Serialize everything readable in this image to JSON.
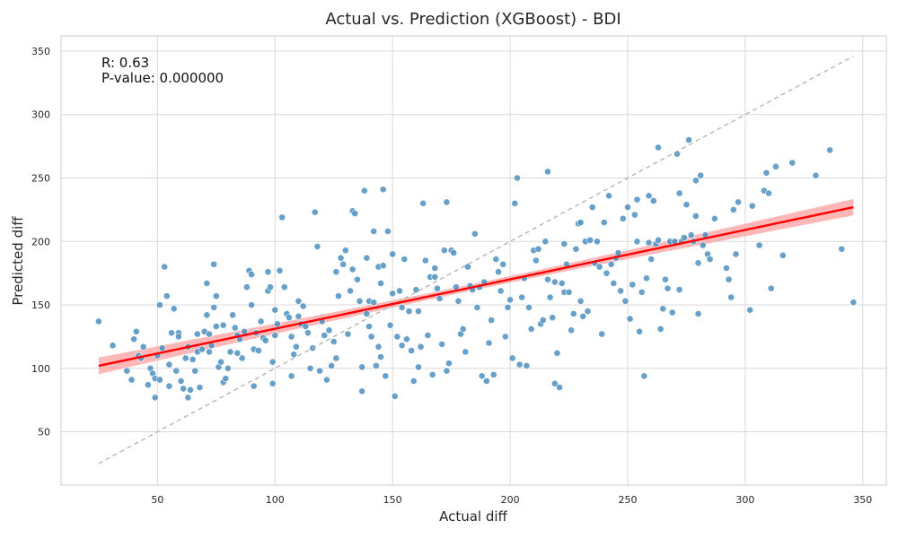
{
  "chart_data": {
    "type": "scatter",
    "title": "Actual vs. Prediction (XGBoost) - BDI",
    "xlabel": "Actual  diff",
    "ylabel": "Predicted  diff",
    "xlim": [
      9,
      360
    ],
    "ylim": [
      8,
      362
    ],
    "xticks": [
      50,
      100,
      150,
      200,
      250,
      300,
      350
    ],
    "yticks": [
      50,
      100,
      150,
      200,
      250,
      300,
      350
    ],
    "grid": true,
    "annotations": {
      "r": "R: 0.63",
      "pvalue": "P-value: 0.000000"
    },
    "colors": {
      "points": "#4c8fc0",
      "regression": "#ff0000",
      "ci_band": "#ff9999",
      "identity": "#b0b0b0",
      "grid": "#d9d9d9",
      "frame": "#cccccc"
    },
    "identity_line": {
      "from": [
        25,
        25
      ],
      "to": [
        346,
        346
      ]
    },
    "regression": {
      "from": [
        25,
        102
      ],
      "to": [
        346,
        227
      ],
      "ci_halfwidth_ends": 6.5,
      "ci_halfwidth_center": 2.5
    },
    "points": [
      [
        25,
        137
      ],
      [
        31,
        118
      ],
      [
        37,
        98
      ],
      [
        39,
        91
      ],
      [
        40,
        123
      ],
      [
        41,
        129
      ],
      [
        42,
        110
      ],
      [
        43,
        108
      ],
      [
        44,
        117
      ],
      [
        46,
        87
      ],
      [
        47,
        100
      ],
      [
        48,
        96
      ],
      [
        49,
        77
      ],
      [
        49,
        92
      ],
      [
        50,
        110
      ],
      [
        51,
        150
      ],
      [
        51,
        91
      ],
      [
        52,
        116
      ],
      [
        53,
        180
      ],
      [
        54,
        157
      ],
      [
        55,
        103
      ],
      [
        55,
        86
      ],
      [
        56,
        128
      ],
      [
        57,
        147
      ],
      [
        58,
        98
      ],
      [
        59,
        128
      ],
      [
        59,
        125
      ],
      [
        60,
        90
      ],
      [
        61,
        84
      ],
      [
        62,
        108
      ],
      [
        63,
        77
      ],
      [
        63,
        117
      ],
      [
        64,
        83
      ],
      [
        65,
        107
      ],
      [
        66,
        98
      ],
      [
        67,
        127
      ],
      [
        67,
        113
      ],
      [
        68,
        85
      ],
      [
        69,
        115
      ],
      [
        70,
        129
      ],
      [
        71,
        167
      ],
      [
        71,
        142
      ],
      [
        72,
        127
      ],
      [
        72,
        113
      ],
      [
        73,
        118
      ],
      [
        74,
        148
      ],
      [
        74,
        182
      ],
      [
        75,
        133
      ],
      [
        75,
        157
      ],
      [
        76,
        101
      ],
      [
        77,
        105
      ],
      [
        78,
        89
      ],
      [
        78,
        134
      ],
      [
        79,
        92
      ],
      [
        80,
        100
      ],
      [
        81,
        113
      ],
      [
        82,
        142
      ],
      [
        83,
        132
      ],
      [
        84,
        126
      ],
      [
        84,
        112
      ],
      [
        85,
        123
      ],
      [
        86,
        108
      ],
      [
        87,
        129
      ],
      [
        88,
        164
      ],
      [
        89,
        177
      ],
      [
        90,
        174
      ],
      [
        90,
        150
      ],
      [
        91,
        115
      ],
      [
        91,
        86
      ],
      [
        92,
        128
      ],
      [
        93,
        114
      ],
      [
        94,
        137
      ],
      [
        95,
        124
      ],
      [
        96,
        122
      ],
      [
        97,
        176
      ],
      [
        97,
        161
      ],
      [
        98,
        164
      ],
      [
        99,
        88
      ],
      [
        99,
        105
      ],
      [
        100,
        146
      ],
      [
        100,
        126
      ],
      [
        101,
        135
      ],
      [
        102,
        177
      ],
      [
        103,
        219
      ],
      [
        104,
        164
      ],
      [
        105,
        143
      ],
      [
        106,
        140
      ],
      [
        107,
        125
      ],
      [
        107,
        94
      ],
      [
        108,
        111
      ],
      [
        109,
        117
      ],
      [
        110,
        141
      ],
      [
        110,
        153
      ],
      [
        111,
        135
      ],
      [
        112,
        149
      ],
      [
        113,
        133
      ],
      [
        114,
        128
      ],
      [
        115,
        100
      ],
      [
        116,
        116
      ],
      [
        117,
        223
      ],
      [
        118,
        196
      ],
      [
        119,
        98
      ],
      [
        120,
        137
      ],
      [
        121,
        126
      ],
      [
        122,
        91
      ],
      [
        123,
        130
      ],
      [
        124,
        102
      ],
      [
        125,
        121
      ],
      [
        126,
        176
      ],
      [
        126,
        108
      ],
      [
        127,
        157
      ],
      [
        128,
        187
      ],
      [
        129,
        182
      ],
      [
        130,
        193
      ],
      [
        131,
        127
      ],
      [
        132,
        161
      ],
      [
        133,
        224
      ],
      [
        133,
        178
      ],
      [
        134,
        222
      ],
      [
        135,
        170
      ],
      [
        136,
        153
      ],
      [
        137,
        101
      ],
      [
        137,
        82
      ],
      [
        138,
        240
      ],
      [
        139,
        187
      ],
      [
        139,
        143
      ],
      [
        140,
        153
      ],
      [
        140,
        133
      ],
      [
        141,
        125
      ],
      [
        142,
        208
      ],
      [
        142,
        152
      ],
      [
        143,
        102
      ],
      [
        144,
        117
      ],
      [
        144,
        180
      ],
      [
        145,
        167
      ],
      [
        145,
        109
      ],
      [
        146,
        241
      ],
      [
        146,
        181
      ],
      [
        147,
        94
      ],
      [
        148,
        208
      ],
      [
        149,
        134
      ],
      [
        150,
        159
      ],
      [
        150,
        190
      ],
      [
        151,
        78
      ],
      [
        152,
        125
      ],
      [
        153,
        161
      ],
      [
        154,
        118
      ],
      [
        154,
        148
      ],
      [
        155,
        186
      ],
      [
        156,
        123
      ],
      [
        157,
        145
      ],
      [
        158,
        114
      ],
      [
        159,
        90
      ],
      [
        160,
        162
      ],
      [
        161,
        101
      ],
      [
        161,
        145
      ],
      [
        162,
        117
      ],
      [
        163,
        230
      ],
      [
        164,
        185
      ],
      [
        165,
        126
      ],
      [
        166,
        172
      ],
      [
        167,
        95
      ],
      [
        168,
        172
      ],
      [
        168,
        179
      ],
      [
        169,
        163
      ],
      [
        170,
        155
      ],
      [
        171,
        119
      ],
      [
        172,
        193
      ],
      [
        173,
        231
      ],
      [
        173,
        98
      ],
      [
        174,
        104
      ],
      [
        175,
        193
      ],
      [
        176,
        191
      ],
      [
        177,
        164
      ],
      [
        178,
        153
      ],
      [
        179,
        127
      ],
      [
        180,
        131
      ],
      [
        181,
        113
      ],
      [
        182,
        180
      ],
      [
        183,
        165
      ],
      [
        184,
        162
      ],
      [
        185,
        206
      ],
      [
        186,
        148
      ],
      [
        187,
        164
      ],
      [
        188,
        94
      ],
      [
        189,
        168
      ],
      [
        190,
        90
      ],
      [
        191,
        120
      ],
      [
        192,
        138
      ],
      [
        193,
        95
      ],
      [
        194,
        186
      ],
      [
        195,
        176
      ],
      [
        196,
        161
      ],
      [
        197,
        182
      ],
      [
        198,
        125
      ],
      [
        199,
        148
      ],
      [
        200,
        154
      ],
      [
        201,
        108
      ],
      [
        202,
        230
      ],
      [
        203,
        250
      ],
      [
        204,
        103
      ],
      [
        205,
        156
      ],
      [
        206,
        171
      ],
      [
        207,
        102
      ],
      [
        208,
        148
      ],
      [
        209,
        131
      ],
      [
        210,
        193
      ],
      [
        211,
        185
      ],
      [
        212,
        194
      ],
      [
        213,
        135
      ],
      [
        214,
        138
      ],
      [
        215,
        200
      ],
      [
        216,
        255
      ],
      [
        216,
        170
      ],
      [
        217,
        156
      ],
      [
        218,
        140
      ],
      [
        219,
        168
      ],
      [
        219,
        88
      ],
      [
        220,
        112
      ],
      [
        221,
        85
      ],
      [
        222,
        167
      ],
      [
        223,
        160
      ],
      [
        223,
        198
      ],
      [
        224,
        182
      ],
      [
        225,
        160
      ],
      [
        226,
        130
      ],
      [
        227,
        143
      ],
      [
        228,
        194
      ],
      [
        229,
        214
      ],
      [
        230,
        215
      ],
      [
        230,
        153
      ],
      [
        231,
        141
      ],
      [
        232,
        200
      ],
      [
        233,
        145
      ],
      [
        234,
        201
      ],
      [
        235,
        227
      ],
      [
        236,
        183
      ],
      [
        237,
        200
      ],
      [
        238,
        180
      ],
      [
        239,
        127
      ],
      [
        240,
        215
      ],
      [
        241,
        175
      ],
      [
        242,
        236
      ],
      [
        243,
        182
      ],
      [
        244,
        167
      ],
      [
        245,
        187
      ],
      [
        246,
        191
      ],
      [
        247,
        161
      ],
      [
        248,
        218
      ],
      [
        249,
        153
      ],
      [
        250,
        227
      ],
      [
        251,
        139
      ],
      [
        252,
        166
      ],
      [
        253,
        221
      ],
      [
        254,
        233
      ],
      [
        254,
        200
      ],
      [
        255,
        129
      ],
      [
        256,
        160
      ],
      [
        257,
        94
      ],
      [
        258,
        171
      ],
      [
        259,
        236
      ],
      [
        259,
        199
      ],
      [
        260,
        186
      ],
      [
        261,
        232
      ],
      [
        262,
        198
      ],
      [
        263,
        201
      ],
      [
        263,
        274
      ],
      [
        264,
        131
      ],
      [
        265,
        147
      ],
      [
        266,
        170
      ],
      [
        267,
        163
      ],
      [
        268,
        200
      ],
      [
        269,
        144
      ],
      [
        270,
        200
      ],
      [
        271,
        269
      ],
      [
        272,
        238
      ],
      [
        272,
        162
      ],
      [
        273,
        200
      ],
      [
        274,
        203
      ],
      [
        275,
        229
      ],
      [
        276,
        280
      ],
      [
        277,
        205
      ],
      [
        278,
        200
      ],
      [
        279,
        248
      ],
      [
        279,
        220
      ],
      [
        280,
        143
      ],
      [
        280,
        183
      ],
      [
        281,
        252
      ],
      [
        282,
        197
      ],
      [
        283,
        205
      ],
      [
        284,
        190
      ],
      [
        285,
        186
      ],
      [
        287,
        218
      ],
      [
        292,
        179
      ],
      [
        293,
        170
      ],
      [
        294,
        156
      ],
      [
        295,
        225
      ],
      [
        296,
        190
      ],
      [
        297,
        231
      ],
      [
        302,
        146
      ],
      [
        303,
        228
      ],
      [
        306,
        197
      ],
      [
        308,
        240
      ],
      [
        309,
        254
      ],
      [
        310,
        238
      ],
      [
        311,
        163
      ],
      [
        313,
        259
      ],
      [
        316,
        189
      ],
      [
        320,
        262
      ],
      [
        330,
        252
      ],
      [
        336,
        272
      ],
      [
        341,
        194
      ],
      [
        346,
        152
      ]
    ]
  }
}
